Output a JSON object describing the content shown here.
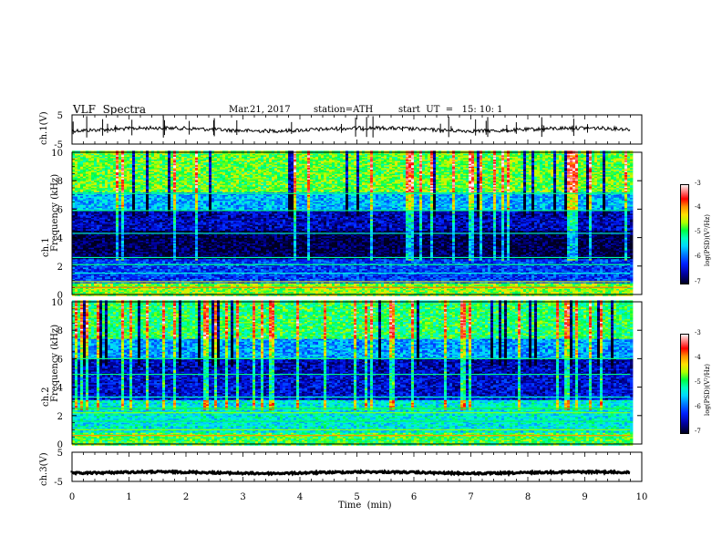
{
  "header": {
    "title": "VLF  Spectra",
    "date": "Mar.21, 2017",
    "station": "station=ATH",
    "start_ut": "start  UT  =   15: 10: 1"
  },
  "colorbar": {
    "label": "log(PSD)(V²/Hz)",
    "ticks": [
      "-3",
      "-4",
      "-5",
      "-6",
      "-7"
    ]
  },
  "chart_data": [
    {
      "type": "line",
      "panel": "ch.1 waveform",
      "ylabel": "ch.1(V)",
      "ylim": [
        -5,
        5
      ],
      "yticks": [
        "5",
        "-5"
      ],
      "xlim": [
        0,
        10
      ],
      "mean_level": 0
    },
    {
      "type": "heatmap",
      "panel": "ch.1 spectrogram",
      "ylabel": "ch.1\nFrequency (kHz)",
      "ylabel_lines": [
        "ch.1",
        "Frequency (kHz)"
      ],
      "ylim": [
        0,
        10
      ],
      "yticks": [
        "10",
        "8",
        "6",
        "4",
        "2",
        "0"
      ],
      "xlim": [
        0,
        10
      ],
      "color_range": [
        -7,
        -3
      ],
      "bands_khz": [
        {
          "from": 0,
          "to": 0.8,
          "level": -4.6
        },
        {
          "from": 0.8,
          "to": 2.6,
          "level": -6.1
        },
        {
          "from": 2.6,
          "to": 4.6,
          "level": -6.9
        },
        {
          "from": 4.6,
          "to": 5.9,
          "level": -6.5
        },
        {
          "from": 5.9,
          "to": 7.2,
          "level": -5.6
        },
        {
          "from": 7.2,
          "to": 10,
          "level": -4.7
        }
      ]
    },
    {
      "type": "heatmap",
      "panel": "ch.2 spectrogram",
      "ylabel": "ch.2\nFrequency (kHz)",
      "ylabel_lines": [
        "ch.2",
        "Frequency (kHz)"
      ],
      "ylim": [
        0,
        10
      ],
      "yticks": [
        "10",
        "8",
        "6",
        "4",
        "2",
        "0"
      ],
      "xlim": [
        0,
        10
      ],
      "color_range": [
        -7,
        -3
      ],
      "bands_khz": [
        {
          "from": 0,
          "to": 0.8,
          "level": -4.8
        },
        {
          "from": 0.8,
          "to": 3.2,
          "level": -5.3
        },
        {
          "from": 3.2,
          "to": 4.9,
          "level": -6.4
        },
        {
          "from": 4.9,
          "to": 6.0,
          "level": -6.5
        },
        {
          "from": 6.0,
          "to": 7.4,
          "level": -5.7
        },
        {
          "from": 7.4,
          "to": 10,
          "level": -4.9
        }
      ]
    },
    {
      "type": "line",
      "panel": "ch.3 waveform",
      "ylabel": "ch.3(V)",
      "ylim": [
        -5,
        5
      ],
      "yticks": [
        "5",
        "-5"
      ],
      "xlim": [
        0,
        10
      ],
      "mean_level": -2
    }
  ],
  "xaxis": {
    "label": "Time  (min)",
    "ticks": [
      "0",
      "1",
      "2",
      "3",
      "4",
      "5",
      "6",
      "7",
      "8",
      "9",
      "10"
    ],
    "data_end_min": 9.8
  }
}
